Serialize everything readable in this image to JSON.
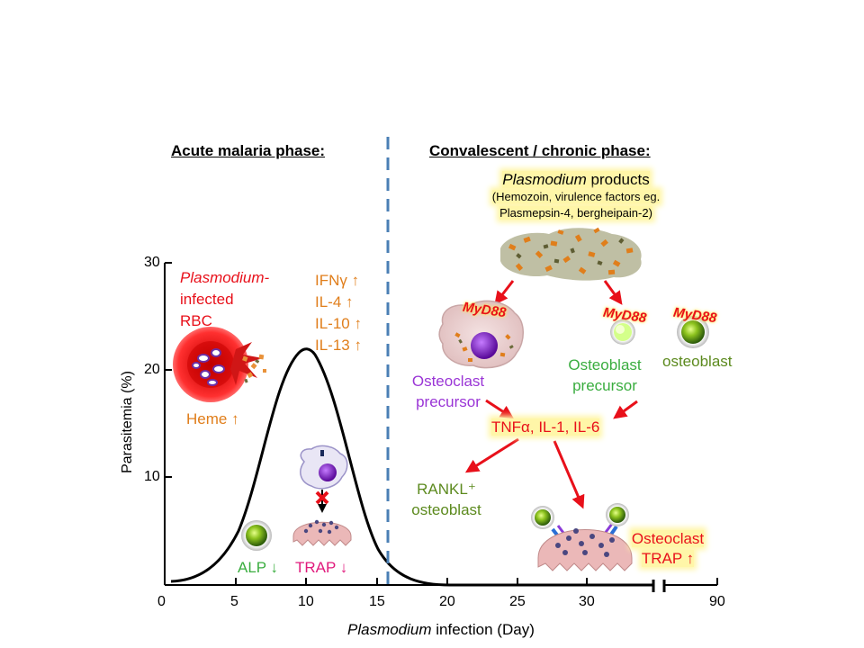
{
  "phases": {
    "acute": "Acute malaria phase:",
    "chronic": "Convalescent / chronic phase:"
  },
  "axes": {
    "x_label_italic": "Plasmodium",
    "x_label_rest": " infection (Day)",
    "y_label": "Parasitemia (%)",
    "x_ticks": [
      "0",
      "5",
      "10",
      "15",
      "20",
      "25",
      "30",
      "90"
    ],
    "y_ticks": [
      "30",
      "20",
      "10"
    ]
  },
  "acute": {
    "rbc_line1_italic": "Plasmodium-",
    "rbc_line2": "infected",
    "rbc_line3": "RBC",
    "cytokines": [
      "IFNγ ↑",
      "IL-4 ↑",
      "IL-10 ↑",
      "IL-13 ↑"
    ],
    "heme": "Heme ↑",
    "alp": "ALP ↓",
    "trap": "TRAP ↓"
  },
  "chronic": {
    "products_italic": "Plasmodium",
    "products_rest": " products",
    "products_sub1": "(Hemozoin, virulence factors eg.",
    "products_sub2": "Plasmepsin-4, bergheipain-2)",
    "myd88": "MyD88",
    "osteoclast_precursor_1": "Osteoclast",
    "osteoclast_precursor_2": "precursor",
    "osteoblast_precursor_1": "Osteoblast",
    "osteoblast_precursor_2": "precursor",
    "osteoblast": "osteoblast",
    "cytokines": "TNFα, IL-1, IL-6",
    "rankl_1": "RANKL⁺",
    "rankl_2": "osteoblast",
    "osteoclast_1": "Osteoclast",
    "osteoclast_2": "TRAP ↑"
  },
  "colors": {
    "red": "#e8101a",
    "orange": "#e07e1b",
    "purple": "#9a35d6",
    "green": "#3aad3f",
    "olive": "#5c8a1e",
    "pink": "#e01a7c",
    "highlight": "#fff6a8",
    "divider": "#4a7fb5"
  }
}
